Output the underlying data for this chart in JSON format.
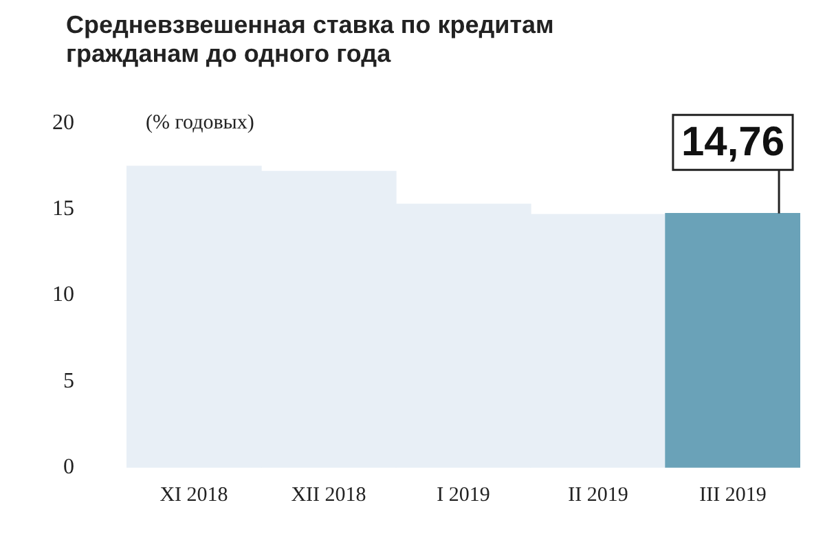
{
  "chart_data": {
    "type": "bar",
    "title": "Средневзвешенная ставка по кредитам гражданам до одного года",
    "ylabel": "(% годовых)",
    "categories": [
      "XI 2018",
      "XII 2018",
      "I 2019",
      "II 2019",
      "III 2019"
    ],
    "values": [
      17.5,
      17.2,
      15.3,
      14.7,
      14.76
    ],
    "colors": [
      "#e8eff6",
      "#e8eff6",
      "#e8eff6",
      "#e8eff6",
      "#6aa2b8"
    ],
    "value_labels": [
      null,
      null,
      null,
      null,
      "14,76"
    ],
    "ylim": [
      0,
      20
    ],
    "yticks": [
      0,
      5,
      10,
      15,
      20
    ],
    "grid": false,
    "legend": false
  }
}
